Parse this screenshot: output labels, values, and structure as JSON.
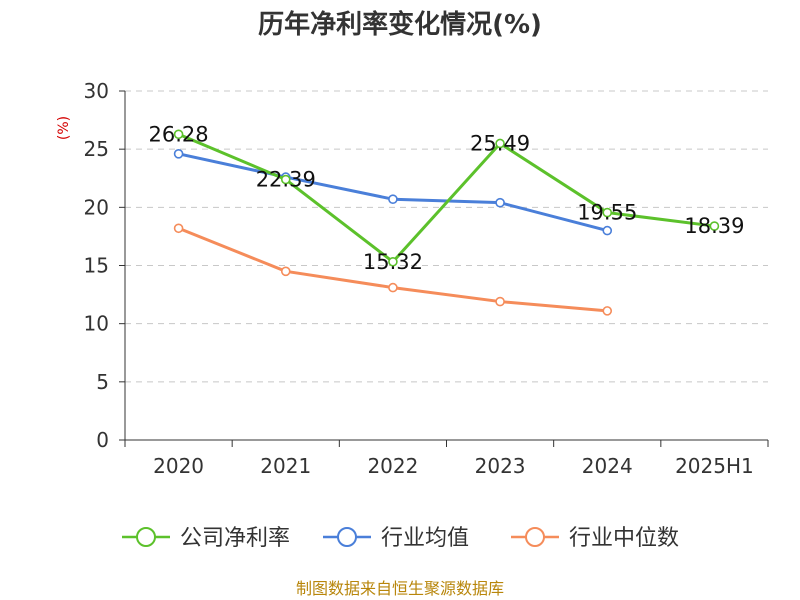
{
  "chart_data": {
    "type": "line",
    "title": "历年净利率变化情况(%)",
    "ylabel": "(%)",
    "categories": [
      "2020",
      "2021",
      "2022",
      "2023",
      "2024",
      "2025H1"
    ],
    "ylim": [
      0,
      30
    ],
    "yticks": [
      0,
      5,
      10,
      15,
      20,
      25,
      30
    ],
    "grid": true,
    "legend_position": "bottom",
    "series": [
      {
        "name": "公司净利率",
        "color": "#5cc12b",
        "values": [
          26.28,
          22.39,
          15.32,
          25.49,
          19.55,
          18.39
        ],
        "labels": [
          "26.28",
          "22.39",
          "15.32",
          "25.49",
          "19.55",
          "18.39"
        ]
      },
      {
        "name": "行业均值",
        "color": "#4a7fd9",
        "values": [
          24.6,
          22.6,
          20.7,
          20.4,
          18.0,
          null
        ]
      },
      {
        "name": "行业中位数",
        "color": "#f58c5a",
        "values": [
          18.2,
          14.5,
          13.1,
          11.9,
          11.1,
          null
        ]
      }
    ],
    "source": "制图数据来自恒生聚源数据库"
  }
}
